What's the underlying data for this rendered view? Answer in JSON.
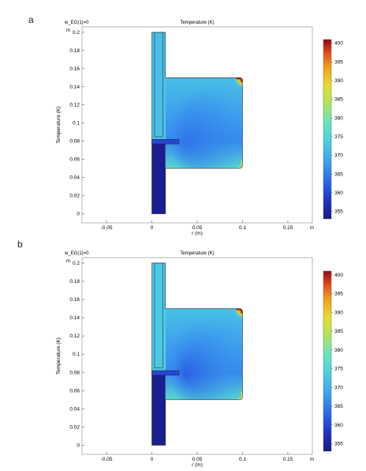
{
  "panels": [
    {
      "letter": "a",
      "chart_data": {
        "type": "heatmap",
        "title": "Temperature (K)",
        "subtitle": "w_EG(1)=0",
        "xlabel": "r (m)",
        "ylabel": "Temperature (K)",
        "x_unit": "m",
        "y_unit": "m",
        "xlim": [
          -0.077,
          0.177
        ],
        "ylim": [
          -0.01,
          0.206
        ],
        "x_ticks": [
          -0.05,
          0,
          0.05,
          0.1,
          0.15
        ],
        "x_tick_labels": [
          "-0.05",
          "0",
          "0.05",
          "0.1",
          "0.15"
        ],
        "y_ticks": [
          0,
          0.02,
          0.04,
          0.06,
          0.08,
          0.1,
          0.12,
          0.14,
          0.16,
          0.18,
          0.2
        ],
        "y_tick_labels": [
          "0",
          "0.02",
          "0.04",
          "0.06",
          "0.08",
          "0.1",
          "0.12",
          "0.14",
          "0.16",
          "0.18",
          "0.2"
        ],
        "colorbar": {
          "min": 353,
          "max": 401,
          "ticks": [
            355,
            360,
            365,
            370,
            375,
            380,
            385,
            390,
            395,
            400
          ],
          "tick_labels": [
            "355",
            "360",
            "365",
            "370",
            "375",
            "380",
            "385",
            "390",
            "395",
            "400"
          ],
          "colormap": "rainbow"
        },
        "regions": [
          {
            "name": "bottom-pipe",
            "r": [
              0,
              0.015
            ],
            "z": [
              0,
              0.08
            ],
            "temperature": 354
          },
          {
            "name": "top-pipe",
            "r": [
              0,
              0.015
            ],
            "z": [
              0.08,
              0.2
            ],
            "temperature": 372
          },
          {
            "name": "inner-tube",
            "r": [
              0.003,
              0.012
            ],
            "z": [
              0.085,
              0.2
            ],
            "temperature": 372
          },
          {
            "name": "chamber",
            "r": [
              0.015,
              0.1
            ],
            "z": [
              0.05,
              0.15
            ],
            "temperature_range": [
              364,
              400
            ]
          },
          {
            "name": "nozzle",
            "r": [
              0,
              0.03
            ],
            "z": [
              0.077,
              0.082
            ],
            "temperature": 360
          }
        ]
      }
    },
    {
      "letter": "b",
      "chart_data": {
        "type": "heatmap",
        "title": "Temperature (K)",
        "subtitle": "w_EG(1)=0",
        "xlabel": "r (m)",
        "ylabel": "Temperature (K)",
        "x_unit": "m",
        "y_unit": "m",
        "xlim": [
          -0.077,
          0.177
        ],
        "ylim": [
          -0.01,
          0.206
        ],
        "x_ticks": [
          -0.05,
          0,
          0.05,
          0.1,
          0.15
        ],
        "x_tick_labels": [
          "-0.05",
          "0",
          "0.05",
          "0.1",
          "0.15"
        ],
        "y_ticks": [
          0,
          0.02,
          0.04,
          0.06,
          0.08,
          0.1,
          0.12,
          0.14,
          0.16,
          0.18,
          0.2
        ],
        "y_tick_labels": [
          "0",
          "0.02",
          "0.04",
          "0.06",
          "0.08",
          "0.1",
          "0.12",
          "0.14",
          "0.16",
          "0.18",
          "0.2"
        ],
        "colorbar": {
          "min": 353,
          "max": 401,
          "ticks": [
            355,
            360,
            365,
            370,
            375,
            380,
            385,
            390,
            395,
            400
          ],
          "tick_labels": [
            "355",
            "360",
            "365",
            "370",
            "375",
            "380",
            "385",
            "390",
            "395",
            "400"
          ],
          "colormap": "rainbow"
        },
        "regions": [
          {
            "name": "bottom-pipe",
            "r": [
              0,
              0.015
            ],
            "z": [
              0,
              0.08
            ],
            "temperature": 354
          },
          {
            "name": "top-pipe",
            "r": [
              0,
              0.015
            ],
            "z": [
              0.08,
              0.2
            ],
            "temperature": 373
          },
          {
            "name": "inner-tube",
            "r": [
              0.003,
              0.012
            ],
            "z": [
              0.085,
              0.2
            ],
            "temperature": 373
          },
          {
            "name": "chamber",
            "r": [
              0.015,
              0.1
            ],
            "z": [
              0.05,
              0.15
            ],
            "temperature_range": [
              362,
              400
            ]
          },
          {
            "name": "nozzle",
            "r": [
              0,
              0.03
            ],
            "z": [
              0.077,
              0.082
            ],
            "temperature": 360
          }
        ]
      }
    }
  ]
}
